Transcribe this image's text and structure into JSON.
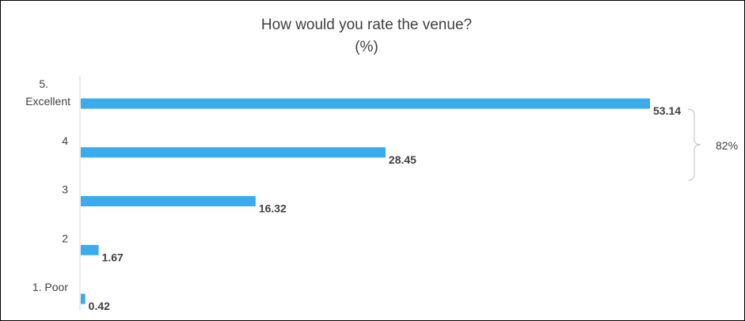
{
  "chart_data": {
    "type": "bar",
    "orientation": "horizontal",
    "title": "How would you rate the venue?",
    "subtitle": "(%)",
    "categories": [
      "5. Excellent",
      "4",
      "3",
      "2",
      "1. Poor"
    ],
    "values": [
      53.14,
      28.45,
      16.32,
      1.67,
      0.42
    ],
    "xlim": [
      0,
      55
    ],
    "grid": false,
    "bar_color": "#3AABEB",
    "annotation": {
      "label": "82%",
      "spans_categories": [
        "5. Excellent",
        "4"
      ]
    }
  }
}
